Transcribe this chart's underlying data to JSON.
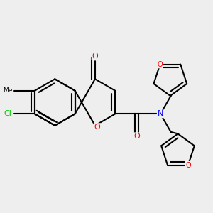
{
  "background_color": "#eeeeee",
  "bond_color": "#000000",
  "bond_width": 1.5,
  "dbo": 0.018,
  "atom_colors": {
    "O": "#ff0000",
    "N": "#0000ff",
    "Cl": "#00cc00",
    "C": "#000000"
  },
  "afs": 8.0
}
